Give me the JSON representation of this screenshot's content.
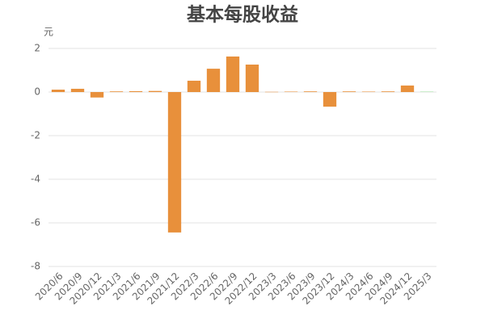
{
  "chart_data": {
    "type": "bar",
    "title": "基本每股收益",
    "y_unit": "元",
    "categories": [
      "2020/6",
      "2020/9",
      "2020/12",
      "2021/3",
      "2021/6",
      "2021/9",
      "2021/12",
      "2022/3",
      "2022/6",
      "2022/9",
      "2022/12",
      "2023/3",
      "2023/6",
      "2023/9",
      "2023/12",
      "2024/3",
      "2024/6",
      "2024/9",
      "2024/12",
      "2025/3"
    ],
    "values": [
      0.11,
      0.15,
      -0.25,
      0.03,
      0.04,
      0.05,
      -6.44,
      0.52,
      1.07,
      1.63,
      1.26,
      0.01,
      0.02,
      0.03,
      -0.67,
      0.03,
      0.02,
      0.03,
      0.3,
      0.02
    ],
    "colors": [
      "#e8903b",
      "#e8903b",
      "#e8903b",
      "#e8903b",
      "#e8903b",
      "#e8903b",
      "#e8903b",
      "#e8903b",
      "#e8903b",
      "#e8903b",
      "#e8903b",
      "#e8903b",
      "#e8903b",
      "#e8903b",
      "#e8903b",
      "#e8903b",
      "#e8903b",
      "#e8903b",
      "#e8903b",
      "#9fdf9f"
    ],
    "ylim": [
      -8,
      2
    ],
    "yticks": [
      -8,
      -6,
      -4,
      -2,
      0,
      2
    ],
    "grid": true
  }
}
